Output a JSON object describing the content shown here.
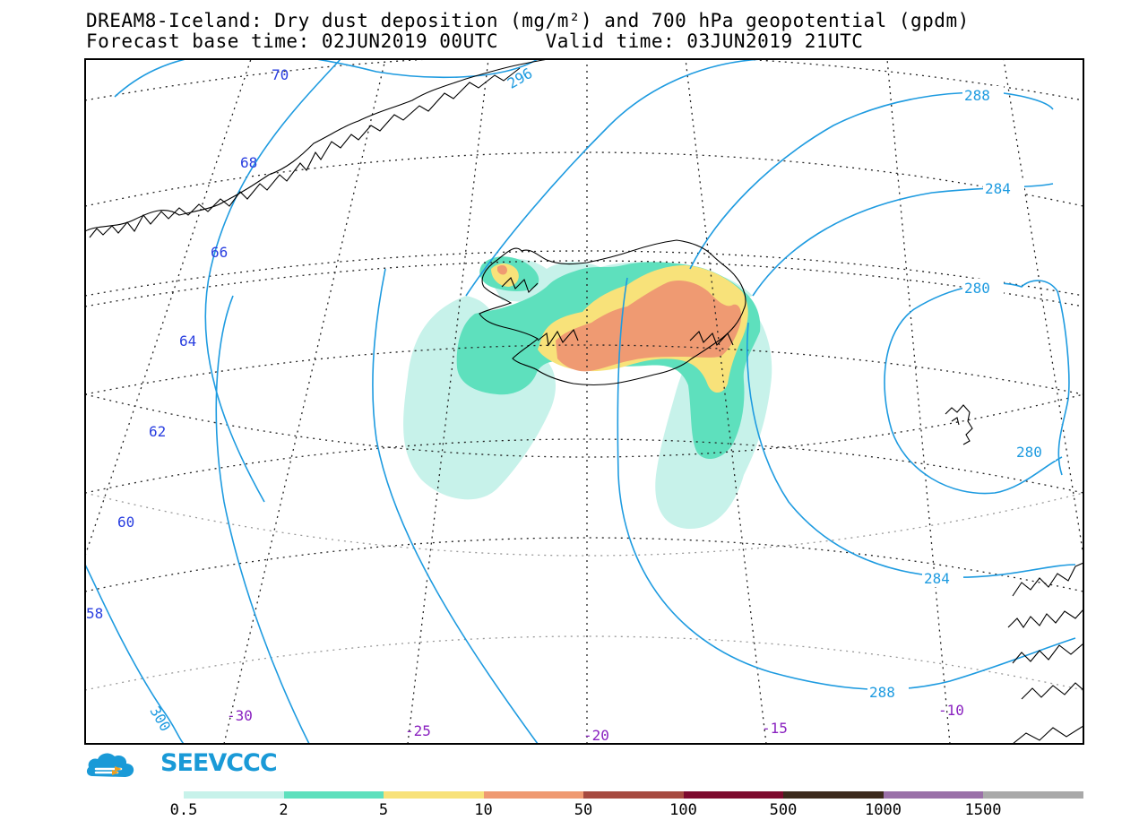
{
  "header": {
    "title_line1": "DREAM8-Iceland: Dry dust deposition (mg/m²) and 700 hPa geopotential (gpdm)",
    "title_line2": "Forecast base time: 02JUN2019 00UTC    Valid time: 03JUN2019 21UTC"
  },
  "map": {
    "latitude_labels": [
      "70",
      "68",
      "66",
      "64",
      "62",
      "60",
      "58"
    ],
    "longitude_labels": [
      "-30",
      "-25",
      "-20",
      "-15",
      "-10"
    ],
    "contour_labels": [
      "296",
      "288",
      "284",
      "280",
      "280",
      "284",
      "288",
      "300"
    ],
    "colors": {
      "contour": "#1e9be0",
      "lat_label": "#2a3fe0",
      "lon_label": "#8a22c0",
      "coast": "#000000"
    }
  },
  "logo": {
    "text": "SEEVCCC",
    "icon": "cloud-logo-icon",
    "color": "#1a9ad7"
  },
  "legend": {
    "labels": [
      "0.5",
      "2",
      "5",
      "10",
      "50",
      "100",
      "500",
      "1000",
      "1500"
    ],
    "colors": [
      "#c7f2ea",
      "#5ee0bd",
      "#f8e27a",
      "#ef9a72",
      "#a64a40",
      "#7d0a2e",
      "#3c2a1c",
      "#9a70a8",
      "#a9a9a9"
    ]
  }
}
